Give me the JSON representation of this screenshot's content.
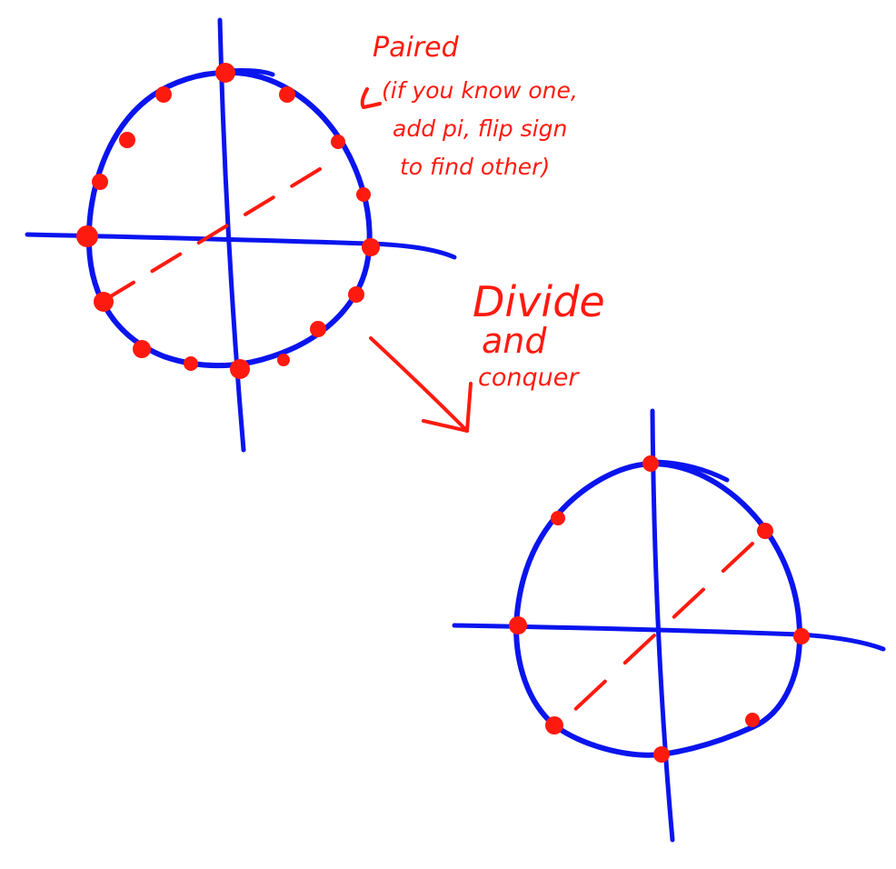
{
  "annotations": {
    "paired": "Paired",
    "paired_note_line1": "(if you know one,",
    "paired_note_line2": "add pi, flip sign",
    "paired_note_line3": "to find other)",
    "divide": "Divide",
    "and": "and",
    "conquer": "conquer"
  },
  "diagrams": {
    "left_points": 16,
    "right_points": 8
  },
  "colors": {
    "curve": "#0a14ee",
    "points": "#ff1a0f",
    "text": "#ff1a0f",
    "background": "#ffffff"
  }
}
